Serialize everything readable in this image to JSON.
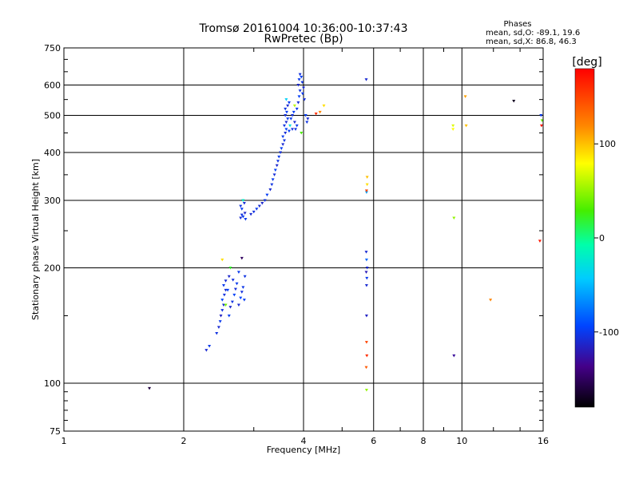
{
  "chart_data": {
    "type": "scatter",
    "title": "Tromsø 20161004 10:36:00-10:37:43",
    "subtitle": "RwPretec (Bp)",
    "stats": {
      "heading": "Phases",
      "line1": "mean, sd,O: -89.1, 19.6",
      "line2": "mean, sd,X: 86.8, 46.3"
    },
    "xlabel": "Frequency [MHz]",
    "ylabel": "Stationary phase Virtual Height [km]",
    "xscale": "log",
    "yscale": "log",
    "xlim": [
      1,
      16
    ],
    "ylim": [
      75,
      750
    ],
    "xticks": [
      1,
      2,
      4,
      6,
      8,
      10,
      16
    ],
    "xtick_labels": [
      "1",
      "2",
      "4",
      "6",
      "8",
      "10",
      "16"
    ],
    "yticks": [
      75,
      100,
      200,
      300,
      400,
      500,
      600,
      750
    ],
    "ytick_labels": [
      "75",
      "100",
      "200",
      "300",
      "400",
      "500",
      "600",
      "750"
    ],
    "grid": true,
    "colorbar": {
      "label": "[deg]",
      "range": [
        -180,
        180
      ],
      "ticks": [
        100,
        0,
        -100
      ],
      "tick_labels": [
        "100",
        "0",
        "-100"
      ]
    },
    "points": [
      [
        1.64,
        97,
        -160
      ],
      [
        2.28,
        122,
        -110
      ],
      [
        2.32,
        125,
        -100
      ],
      [
        2.42,
        135,
        -105
      ],
      [
        2.45,
        140,
        -110
      ],
      [
        2.47,
        145,
        -100
      ],
      [
        2.48,
        150,
        -115
      ],
      [
        2.5,
        155,
        -105
      ],
      [
        2.52,
        160,
        -110
      ],
      [
        2.5,
        165,
        -95
      ],
      [
        2.53,
        170,
        -105
      ],
      [
        2.55,
        175,
        -110
      ],
      [
        2.52,
        180,
        -100
      ],
      [
        2.55,
        185,
        -108
      ],
      [
        2.6,
        150,
        -98
      ],
      [
        2.62,
        158,
        -112
      ],
      [
        2.65,
        163,
        -104
      ],
      [
        2.68,
        170,
        -96
      ],
      [
        2.7,
        176,
        -108
      ],
      [
        2.72,
        182,
        -100
      ],
      [
        2.75,
        160,
        -110
      ],
      [
        2.78,
        167,
        -94
      ],
      [
        2.8,
        173,
        -106
      ],
      [
        2.82,
        178,
        -102
      ],
      [
        2.84,
        165,
        -98
      ],
      [
        2.85,
        190,
        -104
      ],
      [
        2.75,
        195,
        -100
      ],
      [
        2.6,
        190,
        -112
      ],
      [
        2.58,
        175,
        -96
      ],
      [
        2.66,
        186,
        -106
      ],
      [
        2.5,
        210,
        90
      ],
      [
        2.55,
        160,
        40
      ],
      [
        2.8,
        212,
        -150
      ],
      [
        2.62,
        200,
        20
      ],
      [
        2.78,
        270,
        -110
      ],
      [
        2.8,
        275,
        -105
      ],
      [
        2.82,
        272,
        -100
      ],
      [
        2.85,
        278,
        -112
      ],
      [
        2.8,
        285,
        -98
      ],
      [
        2.78,
        290,
        -104
      ],
      [
        2.84,
        295,
        -108
      ],
      [
        2.82,
        300,
        -20
      ],
      [
        2.86,
        268,
        -100
      ],
      [
        2.95,
        276,
        -110
      ],
      [
        3.0,
        280,
        -105
      ],
      [
        3.05,
        285,
        -100
      ],
      [
        3.1,
        290,
        -108
      ],
      [
        3.15,
        295,
        -112
      ],
      [
        3.2,
        300,
        -104
      ],
      [
        3.24,
        310,
        -98
      ],
      [
        3.3,
        320,
        -110
      ],
      [
        3.33,
        330,
        -104
      ],
      [
        3.35,
        340,
        -100
      ],
      [
        3.38,
        350,
        -108
      ],
      [
        3.4,
        360,
        -96
      ],
      [
        3.43,
        370,
        -112
      ],
      [
        3.45,
        380,
        -104
      ],
      [
        3.47,
        390,
        -100
      ],
      [
        3.5,
        400,
        -106
      ],
      [
        3.52,
        410,
        -98
      ],
      [
        3.55,
        420,
        -110
      ],
      [
        3.58,
        430,
        -104
      ],
      [
        3.55,
        440,
        -100
      ],
      [
        3.6,
        450,
        -108
      ],
      [
        3.62,
        460,
        -96
      ],
      [
        3.58,
        470,
        -104
      ],
      [
        3.62,
        480,
        -110
      ],
      [
        3.65,
        490,
        -100
      ],
      [
        3.6,
        500,
        -106
      ],
      [
        3.63,
        510,
        -98
      ],
      [
        3.6,
        520,
        -104
      ],
      [
        3.65,
        530,
        -110
      ],
      [
        3.68,
        540,
        -100
      ],
      [
        3.62,
        550,
        -40
      ],
      [
        3.7,
        470,
        -30
      ],
      [
        3.72,
        490,
        -100
      ],
      [
        3.75,
        500,
        -106
      ],
      [
        3.78,
        510,
        -98
      ],
      [
        3.8,
        480,
        -110
      ],
      [
        3.82,
        460,
        -104
      ],
      [
        3.85,
        520,
        -100
      ],
      [
        3.88,
        540,
        -108
      ],
      [
        3.9,
        560,
        -96
      ],
      [
        3.92,
        580,
        -104
      ],
      [
        3.88,
        600,
        -110
      ],
      [
        3.9,
        620,
        -100
      ],
      [
        3.92,
        640,
        -106
      ],
      [
        3.95,
        630,
        -98
      ],
      [
        3.97,
        610,
        -104
      ],
      [
        4.0,
        590,
        -110
      ],
      [
        3.98,
        570,
        -100
      ],
      [
        4.02,
        550,
        -106
      ],
      [
        4.05,
        500,
        -98
      ],
      [
        4.08,
        480,
        -104
      ],
      [
        4.1,
        490,
        -110
      ],
      [
        3.85,
        470,
        -100
      ],
      [
        3.75,
        460,
        -106
      ],
      [
        3.68,
        455,
        -98
      ],
      [
        3.95,
        450,
        30
      ],
      [
        3.8,
        530,
        60
      ],
      [
        4.4,
        510,
        120
      ],
      [
        4.5,
        530,
        90
      ],
      [
        4.3,
        505,
        160
      ],
      [
        5.75,
        620,
        -110
      ],
      [
        5.78,
        345,
        100
      ],
      [
        5.78,
        330,
        90
      ],
      [
        5.76,
        315,
        -60
      ],
      [
        5.76,
        318,
        150
      ],
      [
        5.75,
        220,
        -110
      ],
      [
        5.76,
        210,
        -80
      ],
      [
        5.78,
        200,
        -110
      ],
      [
        5.75,
        195,
        -120
      ],
      [
        5.77,
        188,
        -100
      ],
      [
        5.76,
        180,
        -110
      ],
      [
        5.76,
        150,
        -115
      ],
      [
        5.76,
        128,
        150
      ],
      [
        5.77,
        118,
        160
      ],
      [
        5.75,
        110,
        140
      ],
      [
        5.76,
        96,
        50
      ],
      [
        9.5,
        470,
        70
      ],
      [
        9.5,
        460,
        80
      ],
      [
        9.55,
        270,
        50
      ],
      [
        9.55,
        118,
        -130
      ],
      [
        10.2,
        560,
        110
      ],
      [
        10.25,
        470,
        100
      ],
      [
        11.8,
        165,
        120
      ],
      [
        13.5,
        545,
        -170
      ],
      [
        15.8,
        500,
        -100
      ],
      [
        15.9,
        485,
        40
      ],
      [
        15.85,
        470,
        170
      ],
      [
        15.7,
        235,
        170
      ]
    ]
  }
}
